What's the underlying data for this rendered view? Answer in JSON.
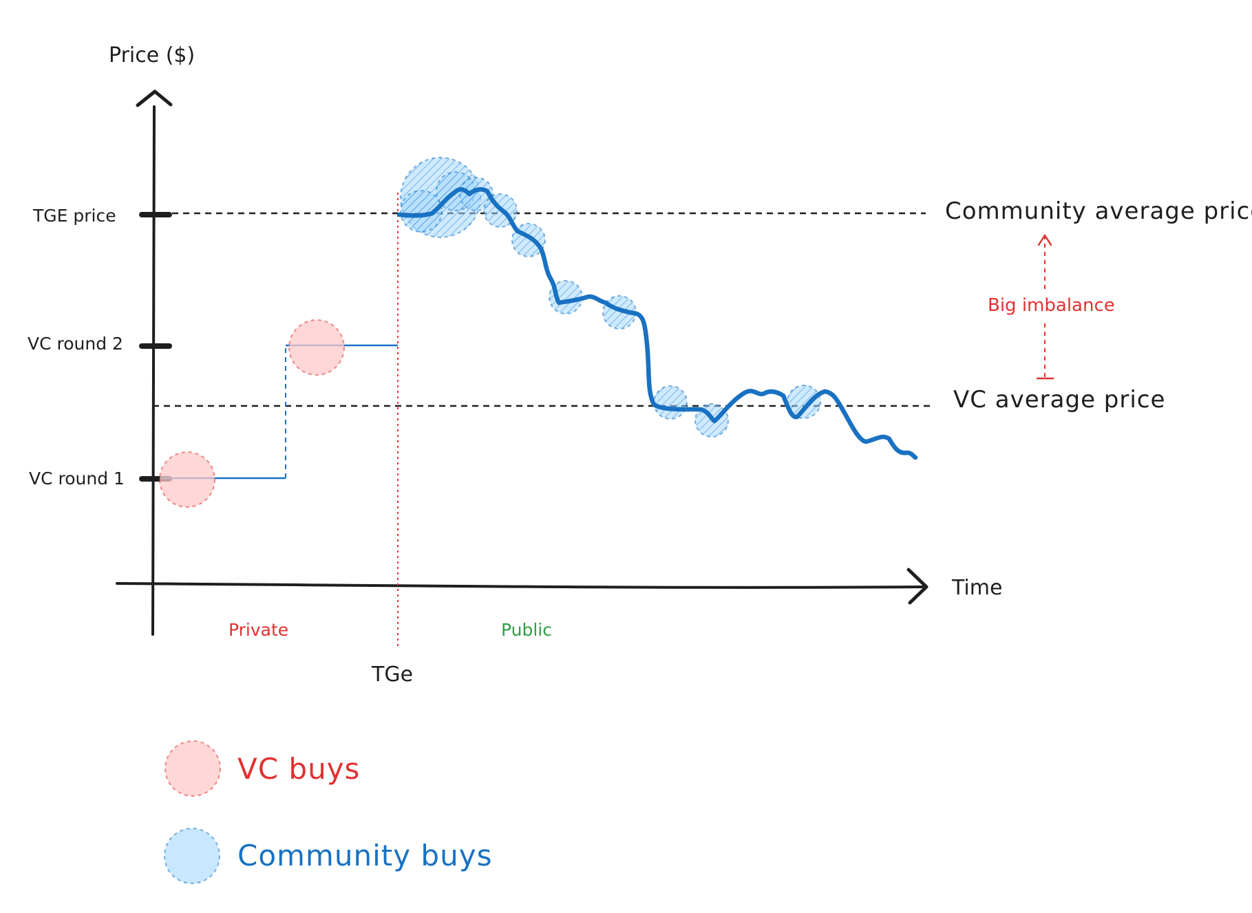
{
  "axes": {
    "y_label": "Price ($)",
    "x_label": "Time",
    "y_ticks": [
      "VC round 1",
      "VC round 2",
      "TGE price"
    ],
    "x_marker": "TGe"
  },
  "phases": {
    "private": "Private",
    "public": "Public"
  },
  "reference_lines": {
    "community_average": "Community average price",
    "vc_average": "VC average price"
  },
  "annotation": {
    "imbalance": "Big imbalance"
  },
  "legend": {
    "vc": "VC buys",
    "community": "Community buys"
  },
  "colors": {
    "ink": "#1e1e1e",
    "vc_red": "#e03131",
    "vc_fill": "#ffc9c9",
    "community_blue": "#1971c2",
    "community_fill": "#a5d8ff",
    "public_green": "#2f9e44"
  }
}
